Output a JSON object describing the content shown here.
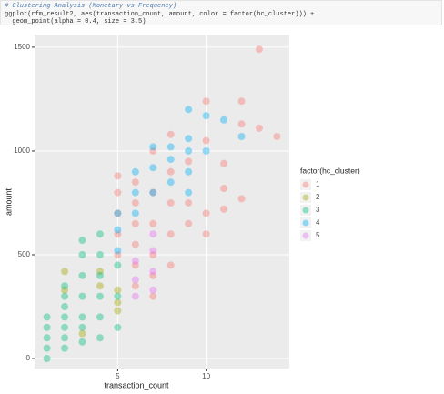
{
  "code": [
    "# Clustering Analysis (Monetary vs Frequency)",
    "ggplot(rfm_result2, aes(transaction_count, amount, color = factor(hc_cluster))) +",
    "  geom_point(alpha = 0.4, size = 3.5)"
  ],
  "chart_data": {
    "type": "scatter",
    "x_label": "transaction_count",
    "y_label": "amount",
    "legend_title": "factor(hc_cluster)",
    "xlim": [
      0.3,
      14.7
    ],
    "ylim": [
      -48,
      1561
    ],
    "xticks": [
      5,
      10
    ],
    "yticks": [
      0,
      500,
      1000,
      1500
    ],
    "grid": true,
    "legend": "right",
    "series": [
      {
        "name": "1",
        "color": "#F8766D",
        "x": [
          5,
          5,
          5,
          5,
          5,
          6,
          6,
          6,
          6,
          6,
          6,
          7,
          7,
          7,
          7,
          7,
          7,
          8,
          8,
          8,
          8,
          8,
          9,
          9,
          9,
          10,
          10,
          10,
          10,
          11,
          11,
          11,
          12,
          12,
          12,
          13,
          13,
          14
        ],
        "values": [
          880,
          800,
          700,
          600,
          500,
          350,
          450,
          550,
          650,
          750,
          850,
          300,
          400,
          500,
          650,
          800,
          1000,
          450,
          600,
          750,
          900,
          1080,
          650,
          750,
          950,
          600,
          700,
          1050,
          1240,
          720,
          820,
          940,
          770,
          1130,
          1240,
          1490,
          1110,
          1070
        ]
      },
      {
        "name": "2",
        "color": "#A3A500",
        "x": [
          2,
          2,
          3,
          4,
          4,
          5,
          5,
          5
        ],
        "values": [
          420,
          330,
          120,
          350,
          420,
          230,
          270,
          330
        ]
      },
      {
        "name": "3",
        "color": "#00BF7D",
        "x": [
          1,
          1,
          1,
          1,
          1,
          2,
          2,
          2,
          2,
          2,
          2,
          2,
          3,
          3,
          3,
          3,
          3,
          3,
          3,
          4,
          4,
          4,
          4,
          4,
          4,
          5,
          5,
          5
        ],
        "values": [
          0,
          50,
          100,
          150,
          200,
          50,
          100,
          150,
          200,
          250,
          300,
          350,
          80,
          150,
          200,
          300,
          400,
          500,
          570,
          100,
          200,
          300,
          400,
          500,
          600,
          150,
          300,
          450
        ]
      },
      {
        "name": "4",
        "color": "#00B0F6",
        "x": [
          5,
          5,
          5,
          6,
          6,
          6,
          7,
          7,
          7,
          8,
          8,
          8,
          9,
          9,
          9,
          9,
          9,
          10,
          10,
          11,
          12
        ],
        "values": [
          520,
          620,
          700,
          700,
          800,
          900,
          800,
          920,
          1020,
          850,
          960,
          1020,
          800,
          900,
          1000,
          1060,
          1200,
          1000,
          1170,
          1150,
          1070
        ]
      },
      {
        "name": "5",
        "color": "#E76BF3",
        "x": [
          6,
          6,
          6,
          7,
          7,
          7,
          7
        ],
        "values": [
          300,
          380,
          470,
          330,
          420,
          520,
          600
        ]
      }
    ]
  }
}
